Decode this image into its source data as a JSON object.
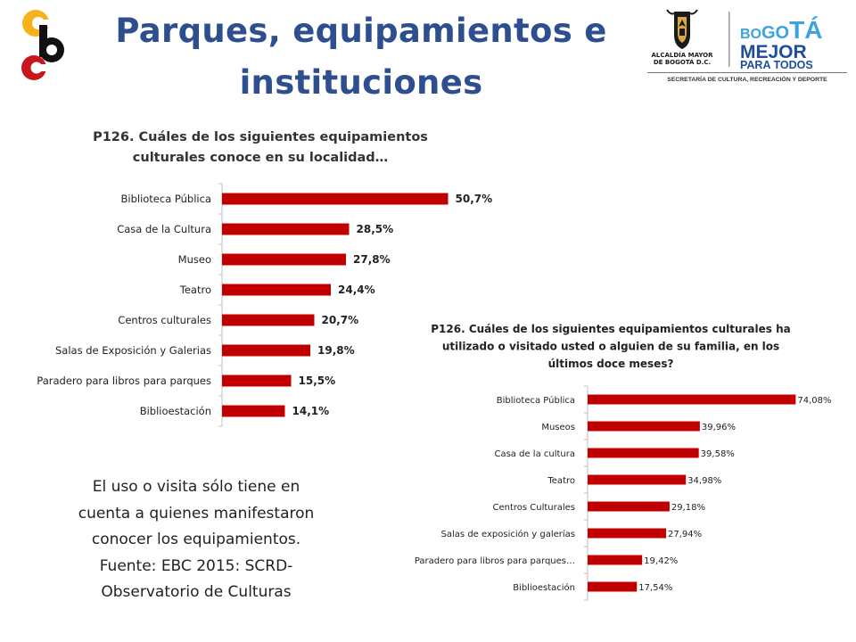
{
  "slide": {
    "title_line1": "Parques, equipamientos e",
    "title_line2": "instituciones",
    "caption_lines": [
      "El uso o visita sólo tiene en",
      "cuenta a quienes  manifestaron",
      "conocer los equipamientos.",
      "Fuente: EBC 2015: SCRD-",
      "Observatorio de Culturas"
    ]
  },
  "logos": {
    "left": {
      "name": "cultura-logo",
      "colors": [
        "#f6b21b",
        "#c7171c",
        "#111111"
      ]
    },
    "right": {
      "crest_caption_1": "ALCALDÍA MAYOR",
      "crest_caption_2": "DE BOGOTÁ D.C.",
      "brand_bo": "BO",
      "brand_go": "GO",
      "brand_ta": "TÁ",
      "brand_mejor": "MEJOR",
      "brand_para": "PARA TODOS",
      "secretaria": "SECRETARÍA DE CULTURA, RECREACIÓN Y DEPORTE",
      "colors": {
        "blue": "#1d4e9e",
        "light_blue": "#3aa3e0",
        "gray": "#555555"
      }
    }
  },
  "colors": {
    "bar": "#c00000",
    "title": "#2e4f8f"
  },
  "chart_data": [
    {
      "type": "bar",
      "orientation": "horizontal",
      "title_lines": [
        "P126. Cuáles de los siguientes equipamientos",
        "culturales conoce en su localidad…"
      ],
      "categories": [
        "Biblioteca Pública",
        "Casa de la Cultura",
        "Museo",
        "Teatro",
        "Centros culturales",
        "Salas de Exposición y Galerias",
        "Paradero para libros para parques",
        "Biblioestación"
      ],
      "values": [
        50.7,
        28.5,
        27.8,
        24.4,
        20.7,
        19.8,
        15.5,
        14.1
      ],
      "value_labels": [
        "50,7%",
        "28,5%",
        "27,8%",
        "24,4%",
        "20,7%",
        "19,8%",
        "15,5%",
        "14,1%"
      ],
      "xlim": [
        0,
        100
      ],
      "grid": false
    },
    {
      "type": "bar",
      "orientation": "horizontal",
      "title_lines": [
        "P126. Cuáles de los siguientes equipamientos culturales ha",
        "utilizado o visitado usted o alguien de su familia, en los",
        "últimos doce meses?"
      ],
      "categories": [
        "Biblioteca Pública",
        "Museos",
        "Casa de la cultura",
        "Teatro",
        "Centros Culturales",
        "Salas de exposición y galerías",
        "Paradero para libros para parques…",
        "Biblioestación"
      ],
      "values": [
        74.08,
        39.96,
        39.58,
        34.98,
        29.18,
        27.94,
        19.42,
        17.54
      ],
      "value_labels": [
        "74,08%",
        "39,96%",
        "39,58%",
        "34,98%",
        "29,18%",
        "27,94%",
        "19,42%",
        "17,54%"
      ],
      "xlim": [
        0,
        100
      ],
      "grid": false
    }
  ]
}
